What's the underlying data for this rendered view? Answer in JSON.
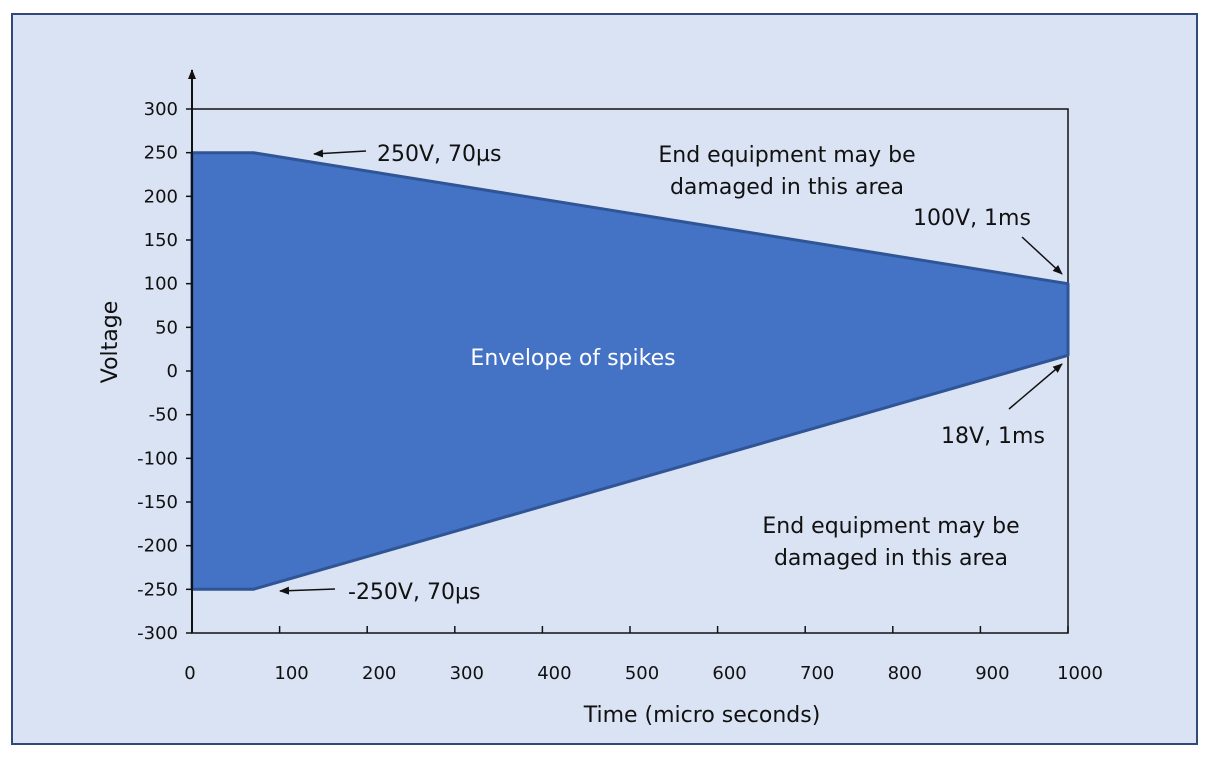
{
  "chart_data": {
    "type": "area",
    "xlabel": "Time (micro seconds)",
    "ylabel": "Voltage",
    "xlim": [
      0,
      1000
    ],
    "ylim": [
      -300,
      300
    ],
    "x_ticks": [
      0,
      100,
      200,
      300,
      400,
      500,
      600,
      700,
      800,
      900,
      1000
    ],
    "y_ticks": [
      300,
      250,
      200,
      150,
      100,
      50,
      0,
      -50,
      -100,
      -150,
      -200,
      -250,
      -300
    ],
    "grid": false,
    "series": [
      {
        "points": [
          {
            "x": 0,
            "upper": 250,
            "lower": -250
          },
          {
            "x": 70,
            "upper": 250,
            "lower": -250
          },
          {
            "x": 1000,
            "upper": 100,
            "lower": 18
          }
        ]
      }
    ],
    "area_label": "Envelope of spikes",
    "region_labels": [
      {
        "id": "upper",
        "lines": [
          "End equipment may be",
          "damaged in this area"
        ]
      },
      {
        "id": "lower",
        "lines": [
          "End equipment may be",
          "damaged in this area"
        ]
      }
    ],
    "annotations": [
      {
        "id": "peak-pos",
        "text": "250V, 70µs",
        "x": 70,
        "y": 250
      },
      {
        "id": "end-pos",
        "text": "100V, 1ms",
        "x": 1000,
        "y": 100
      },
      {
        "id": "end-neg",
        "text": "18V, 1ms",
        "x": 1000,
        "y": 18
      },
      {
        "id": "peak-neg",
        "text": "-250V, 70µs",
        "x": 70,
        "y": -250
      }
    ],
    "colors": {
      "background": "#dae3f3",
      "frame": "#2f4a7a",
      "fill": "#4472c4",
      "edge": "#2f5597",
      "axis": "#111111"
    }
  }
}
